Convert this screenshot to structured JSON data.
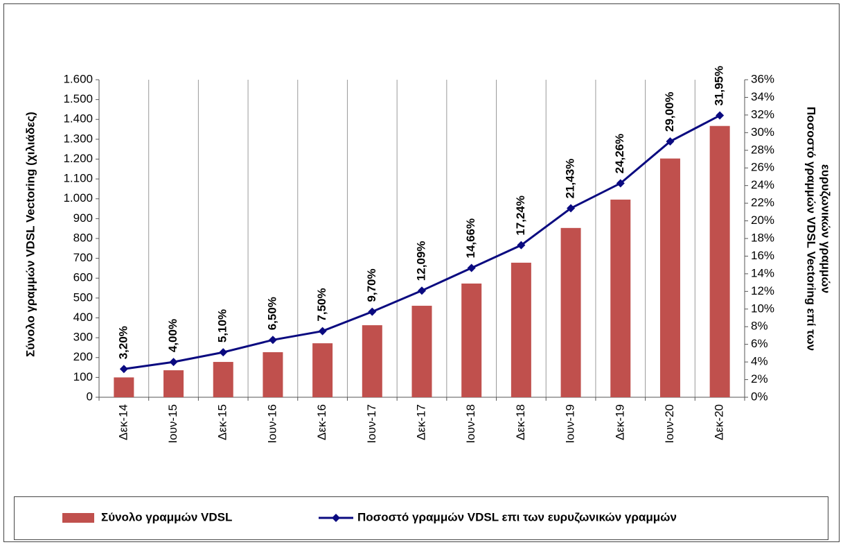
{
  "chart_data": {
    "type": "bar_line",
    "categories": [
      "Δεκ-14",
      "Ιουν-15",
      "Δεκ-15",
      "Ιουν-16",
      "Δεκ-16",
      "Ιουν-17",
      "Δεκ-17",
      "Ιουν-18",
      "Δεκ-18",
      "Ιουν-19",
      "Δεκ-19",
      "Ιουν-20",
      "Δεκ-20"
    ],
    "series": [
      {
        "name": "Σύνολο γραμμών VDSL",
        "type": "bar",
        "color": "#c0504d",
        "values": [
          100,
          136,
          178,
          227,
          272,
          363,
          461,
          573,
          678,
          853,
          996,
          1203,
          1367
        ]
      },
      {
        "name": "Ποσοστό γραμμών VDSL επι των ευρυζωνικών γραμμών",
        "type": "line",
        "axis": "y2",
        "color": "#0a0a80",
        "values": [
          3.2,
          4.0,
          5.1,
          6.5,
          7.5,
          9.7,
          12.09,
          14.66,
          17.24,
          21.43,
          24.26,
          29.0,
          31.95
        ],
        "value_labels": [
          "3,20%",
          "4,00%",
          "5,10%",
          "6,50%",
          "7,50%",
          "9,70%",
          "12,09%",
          "14,66%",
          "17,24%",
          "21,43%",
          "24,26%",
          "29,00%",
          "31,95%"
        ]
      }
    ],
    "ylabel": "Σύνολο γραμμών  VDSL Vectoring (χιλιάδες)",
    "y2label": [
      "Ποσοστό γραμμών  VDSL Vectoring επί των",
      "ευρυζωνικών γραμμών"
    ],
    "ylim": [
      0,
      1600
    ],
    "yticks": [
      0,
      100,
      200,
      300,
      400,
      500,
      600,
      700,
      800,
      900,
      {
        "value": 1000,
        "label": "1.000"
      },
      {
        "value": 1100,
        "label": "1.100"
      },
      {
        "value": 1200,
        "label": "1.200"
      },
      {
        "value": 1300,
        "label": "1.300"
      },
      {
        "value": 1400,
        "label": "1.400"
      },
      {
        "value": 1500,
        "label": "1.500"
      },
      {
        "value": 1600,
        "label": "1.600"
      }
    ],
    "y2lim": [
      0,
      36
    ],
    "y2ticks": [
      {
        "value": 0,
        "label": "0%"
      },
      {
        "value": 2,
        "label": "2%"
      },
      {
        "value": 4,
        "label": "4%"
      },
      {
        "value": 6,
        "label": "6%"
      },
      {
        "value": 8,
        "label": "8%"
      },
      {
        "value": 10,
        "label": "10%"
      },
      {
        "value": 12,
        "label": "12%"
      },
      {
        "value": 14,
        "label": "14%"
      },
      {
        "value": 16,
        "label": "16%"
      },
      {
        "value": 18,
        "label": "18%"
      },
      {
        "value": 20,
        "label": "20%"
      },
      {
        "value": 22,
        "label": "22%"
      },
      {
        "value": 24,
        "label": "24%"
      },
      {
        "value": 26,
        "label": "26%"
      },
      {
        "value": 28,
        "label": "28%"
      },
      {
        "value": 30,
        "label": "30%"
      },
      {
        "value": 32,
        "label": "32%"
      },
      {
        "value": 34,
        "label": "34%"
      },
      {
        "value": 36,
        "label": "36%"
      }
    ],
    "legend": "bottom"
  }
}
